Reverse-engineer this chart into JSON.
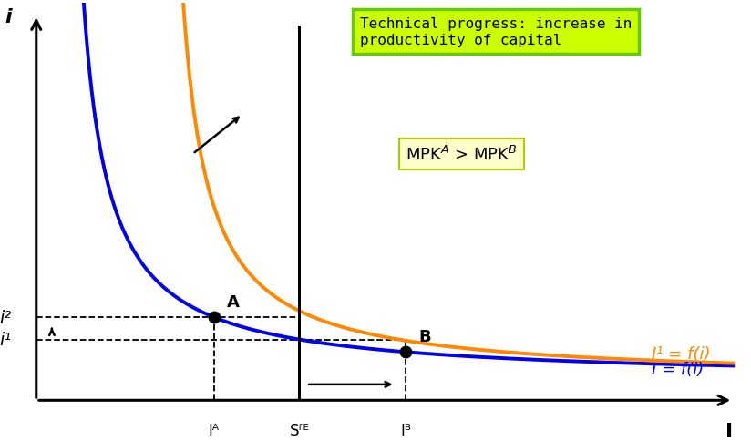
{
  "title": "Technical progress: increase in\nproductivity of capital",
  "title_box_color": "#ccff00",
  "title_box_edge": "#66cc00",
  "blue_curve_label": "I = f(i)",
  "orange_curve_label": "I¹ = f(i)",
  "blue_color": "#0000ee",
  "orange_color": "#ff8800",
  "background_color": "#ffffff",
  "x_axis_label": "I",
  "y_axis_label": "i",
  "i1_label": "i¹",
  "i2_label": "i²",
  "IA_label": "Iᴬ",
  "SFE_label": "Sᶠᴱ",
  "IB_label": "Iᴮ",
  "point_A_label": "A",
  "point_B_label": "B",
  "xlim": [
    0,
    10
  ],
  "ylim": [
    0,
    10
  ],
  "x_IA": 2.5,
  "x_SFE": 3.7,
  "x_IB": 5.2,
  "blue_a": 3.5,
  "blue_b": 0.3,
  "blue_c": 0.5,
  "orange_shift": 1.4
}
